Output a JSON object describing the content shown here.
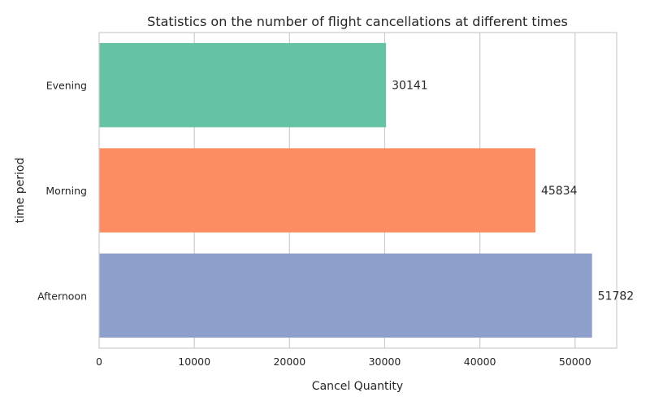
{
  "chart_data": {
    "type": "bar",
    "orientation": "horizontal",
    "title": "Statistics on the number of flight cancellations at different times",
    "xlabel": "Cancel Quantity",
    "ylabel": "time period",
    "categories": [
      "Evening",
      "Morning",
      "Afternoon"
    ],
    "values": [
      30141,
      45834,
      51782
    ],
    "data_labels": [
      "30141",
      "45834",
      "51782"
    ],
    "colors": [
      "#66c2a5",
      "#fc8d62",
      "#8da0cb"
    ],
    "xlim": [
      0,
      54370
    ],
    "xticks": [
      0,
      10000,
      20000,
      30000,
      40000,
      50000
    ],
    "xtick_labels": [
      "0",
      "10000",
      "20000",
      "30000",
      "40000",
      "50000"
    ],
    "grid": true,
    "legend": "none"
  }
}
